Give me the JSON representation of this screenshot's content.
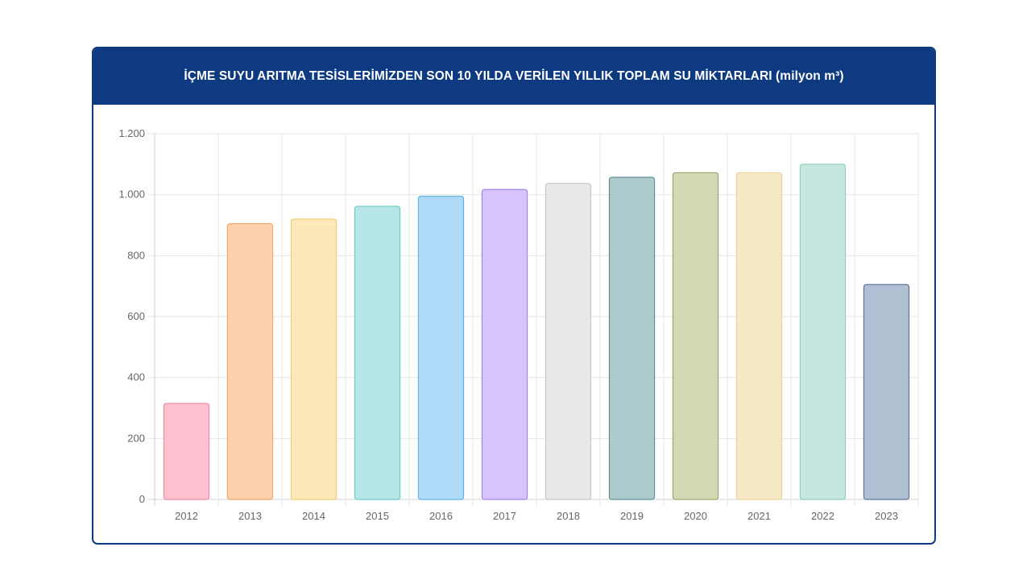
{
  "header": {
    "title": "İÇME SUYU ARITMA TESİSLERİMİZDEN SON 10 YILDA VERİLEN YILLIK TOPLAM SU MİKTARLARI (milyon m³)"
  },
  "chart_data": {
    "type": "bar",
    "title": "İÇME SUYU ARITMA TESİSLERİMİZDEN SON 10 YILDA VERİLEN YILLIK TOPLAM SU MİKTARLARI (milyon m³)",
    "xlabel": "",
    "ylabel": "",
    "ylim": [
      0,
      1200
    ],
    "grid": true,
    "yticks": [
      0,
      200,
      400,
      600,
      800,
      1000,
      1200
    ],
    "ytick_labels": [
      "0",
      "200",
      "400",
      "600",
      "800",
      "1.000",
      "1.200"
    ],
    "categories": [
      "2012",
      "2013",
      "2014",
      "2015",
      "2016",
      "2017",
      "2018",
      "2019",
      "2020",
      "2021",
      "2022",
      "2023"
    ],
    "values": [
      315,
      905,
      920,
      962,
      995,
      1017,
      1037,
      1057,
      1072,
      1072,
      1100,
      705
    ],
    "fill_colors": [
      "#ffc1cf",
      "#fdd1ae",
      "#fde8b9",
      "#b6e6e5",
      "#afdaf8",
      "#d6c4fc",
      "#e7e8ea",
      "#adcacd",
      "#d3d9b3",
      "#f7e8c6",
      "#c6e7df",
      "#b0bfd2"
    ],
    "border_colors": [
      "#f08aa6",
      "#f4a86b",
      "#f3cc73",
      "#6ccbc9",
      "#5fb2ea",
      "#a582f1",
      "#c7c9cd",
      "#5e8f95",
      "#9ca66a",
      "#ecd49a",
      "#90cfbf",
      "#5d7597"
    ]
  }
}
